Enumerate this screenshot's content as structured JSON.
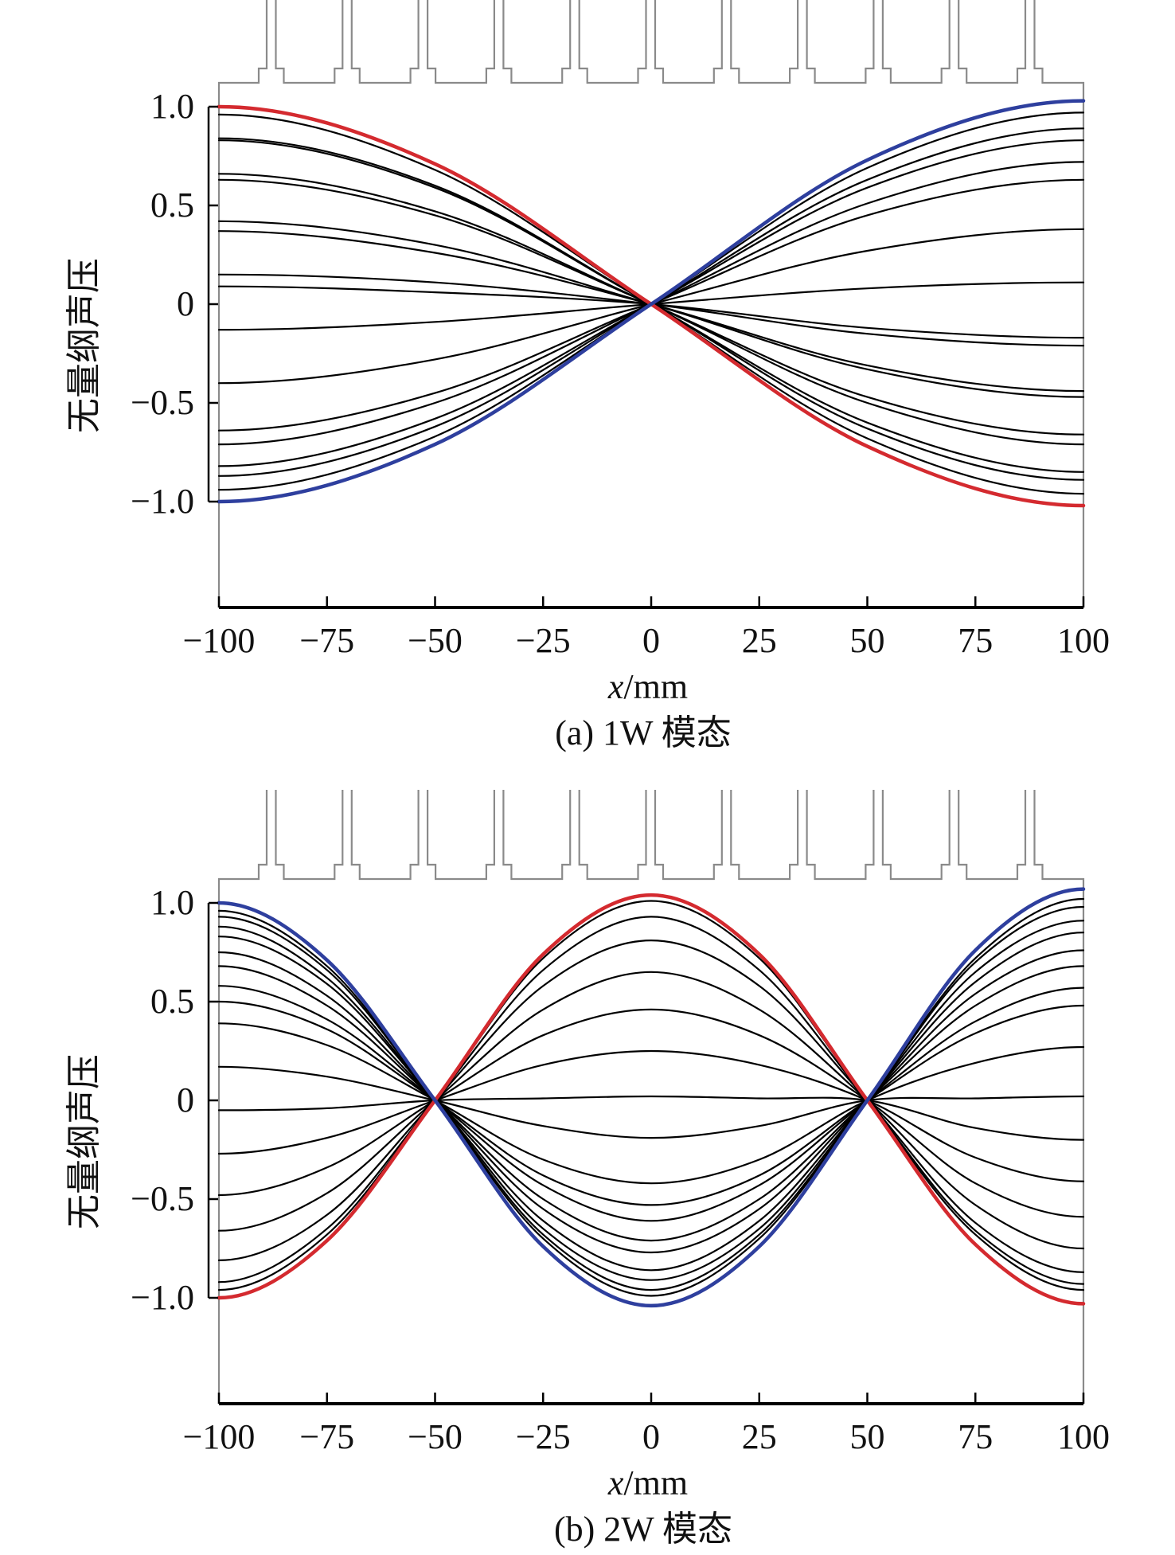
{
  "colors": {
    "highlight_positive": "#d42a2f",
    "highlight_negative": "#2e3f9e",
    "curve": "#000000",
    "frame": "#8a8a8a"
  },
  "chart_data": [
    {
      "type": "line",
      "caption": "(a) 1W 模态",
      "xlabel_var": "x",
      "xlabel_unit": "/mm",
      "ylabel": "无量纲声压",
      "xlim": [
        -100,
        100
      ],
      "ylim": [
        -1.5,
        1.1
      ],
      "xticks": [
        -100,
        -75,
        -50,
        -25,
        0,
        25,
        50,
        75,
        100
      ],
      "xtick_labels": [
        "−100",
        "−75",
        "−50",
        "−25",
        "0",
        "25",
        "50",
        "75",
        "100"
      ],
      "yticks": [
        1.0,
        0.5,
        0,
        -0.5,
        -1.0
      ],
      "ytick_labels": [
        "1.0",
        "0.5",
        "0",
        "−0.5",
        "−1.0"
      ],
      "grid": false,
      "x": [
        -100,
        -50,
        0,
        50,
        100
      ],
      "series": [
        {
          "color": "red",
          "values": [
            1.0,
            0.71,
            0,
            -0.72,
            -1.02
          ]
        },
        {
          "color": "black",
          "values": [
            0.96,
            0.68,
            0,
            -0.68,
            -0.96
          ]
        },
        {
          "color": "black",
          "values": [
            0.84,
            0.6,
            0,
            -0.63,
            -0.89
          ]
        },
        {
          "color": "black",
          "values": [
            0.83,
            0.59,
            0,
            -0.6,
            -0.85
          ]
        },
        {
          "color": "black",
          "values": [
            0.66,
            0.47,
            0,
            -0.5,
            -0.71
          ]
        },
        {
          "color": "black",
          "values": [
            0.63,
            0.45,
            0,
            -0.47,
            -0.66
          ]
        },
        {
          "color": "black",
          "values": [
            0.42,
            0.3,
            0,
            -0.33,
            -0.47
          ]
        },
        {
          "color": "black",
          "values": [
            0.37,
            0.26,
            0,
            -0.31,
            -0.44
          ]
        },
        {
          "color": "black",
          "values": [
            0.15,
            0.11,
            0,
            -0.15,
            -0.21
          ]
        },
        {
          "color": "black",
          "values": [
            0.09,
            0.06,
            0,
            -0.12,
            -0.17
          ]
        },
        {
          "color": "black",
          "values": [
            -0.13,
            -0.09,
            0,
            0.08,
            0.11
          ]
        },
        {
          "color": "black",
          "values": [
            -0.4,
            -0.28,
            0,
            0.27,
            0.38
          ]
        },
        {
          "color": "black",
          "values": [
            -0.64,
            -0.45,
            0,
            0.45,
            0.63
          ]
        },
        {
          "color": "black",
          "values": [
            -0.71,
            -0.5,
            0,
            0.51,
            0.72
          ]
        },
        {
          "color": "black",
          "values": [
            -0.82,
            -0.58,
            0,
            0.59,
            0.83
          ]
        },
        {
          "color": "black",
          "values": [
            -0.87,
            -0.62,
            0,
            0.63,
            0.89
          ]
        },
        {
          "color": "black",
          "values": [
            -0.94,
            -0.67,
            0,
            0.69,
            0.97
          ]
        },
        {
          "color": "blue",
          "values": [
            -1.0,
            -0.71,
            0,
            0.73,
            1.03
          ]
        }
      ]
    },
    {
      "type": "line",
      "caption": "(b) 2W 模态",
      "xlabel_var": "x",
      "xlabel_unit": "/mm",
      "ylabel": "无量纲声压",
      "xlim": [
        -100,
        100
      ],
      "ylim": [
        -1.5,
        1.1
      ],
      "xticks": [
        -100,
        -75,
        -50,
        -25,
        0,
        25,
        50,
        75,
        100
      ],
      "xtick_labels": [
        "−100",
        "−75",
        "−50",
        "−25",
        "0",
        "25",
        "50",
        "75",
        "100"
      ],
      "yticks": [
        1.0,
        0.5,
        0,
        -0.5,
        -1.0
      ],
      "ytick_labels": [
        "1.0",
        "0.5",
        "0",
        "−0.5",
        "−1.0"
      ],
      "grid": false,
      "x": [
        -100,
        -75,
        -50,
        -25,
        0,
        25,
        50,
        75,
        100
      ],
      "series": [
        {
          "color": "red",
          "values": [
            -1.0,
            -0.71,
            0,
            0.74,
            1.04,
            0.74,
            0,
            -0.73,
            -1.03
          ]
        },
        {
          "color": "black",
          "values": [
            -0.96,
            -0.68,
            0,
            0.72,
            1.01,
            0.72,
            0,
            -0.68,
            -0.96
          ]
        },
        {
          "color": "black",
          "values": [
            -0.92,
            -0.65,
            0,
            0.66,
            0.93,
            0.66,
            0,
            -0.66,
            -0.93
          ]
        },
        {
          "color": "black",
          "values": [
            -0.81,
            -0.58,
            0,
            0.58,
            0.81,
            0.58,
            0,
            -0.62,
            -0.87
          ]
        },
        {
          "color": "black",
          "values": [
            -0.66,
            -0.47,
            0,
            0.46,
            0.65,
            0.46,
            0,
            -0.53,
            -0.75
          ]
        },
        {
          "color": "black",
          "values": [
            -0.48,
            -0.34,
            0,
            0.33,
            0.46,
            0.33,
            0,
            -0.42,
            -0.59
          ]
        },
        {
          "color": "black",
          "values": [
            -0.27,
            -0.19,
            0,
            0.18,
            0.25,
            0.18,
            0,
            -0.29,
            -0.41
          ]
        },
        {
          "color": "black",
          "values": [
            -0.05,
            -0.04,
            0,
            0.01,
            0.02,
            0.01,
            0,
            -0.14,
            -0.2
          ]
        },
        {
          "color": "black",
          "values": [
            0.17,
            0.12,
            0,
            -0.13,
            -0.19,
            -0.13,
            0,
            0.01,
            0.02
          ]
        },
        {
          "color": "black",
          "values": [
            0.39,
            0.28,
            0,
            -0.3,
            -0.42,
            -0.3,
            0,
            0.19,
            0.27
          ]
        },
        {
          "color": "black",
          "values": [
            0.5,
            0.36,
            0,
            -0.38,
            -0.53,
            -0.38,
            0,
            0.34,
            0.48
          ]
        },
        {
          "color": "black",
          "values": [
            0.58,
            0.41,
            0,
            -0.43,
            -0.61,
            -0.43,
            0,
            0.4,
            0.57
          ]
        },
        {
          "color": "black",
          "values": [
            0.68,
            0.48,
            0,
            -0.5,
            -0.71,
            -0.5,
            0,
            0.48,
            0.68
          ]
        },
        {
          "color": "black",
          "values": [
            0.75,
            0.53,
            0,
            -0.55,
            -0.77,
            -0.55,
            0,
            0.54,
            0.76
          ]
        },
        {
          "color": "black",
          "values": [
            0.83,
            0.59,
            0,
            -0.61,
            -0.86,
            -0.61,
            0,
            0.6,
            0.85
          ]
        },
        {
          "color": "black",
          "values": [
            0.88,
            0.62,
            0,
            -0.65,
            -0.91,
            -0.65,
            0,
            0.65,
            0.91
          ]
        },
        {
          "color": "black",
          "values": [
            0.93,
            0.66,
            0,
            -0.68,
            -0.96,
            -0.68,
            0,
            0.7,
            0.98
          ]
        },
        {
          "color": "black",
          "values": [
            0.96,
            0.68,
            0,
            -0.7,
            -0.99,
            -0.7,
            0,
            0.72,
            1.02
          ]
        },
        {
          "color": "blue",
          "values": [
            1.0,
            0.71,
            0,
            -0.74,
            -1.04,
            -0.74,
            0,
            0.76,
            1.07
          ]
        }
      ]
    }
  ]
}
